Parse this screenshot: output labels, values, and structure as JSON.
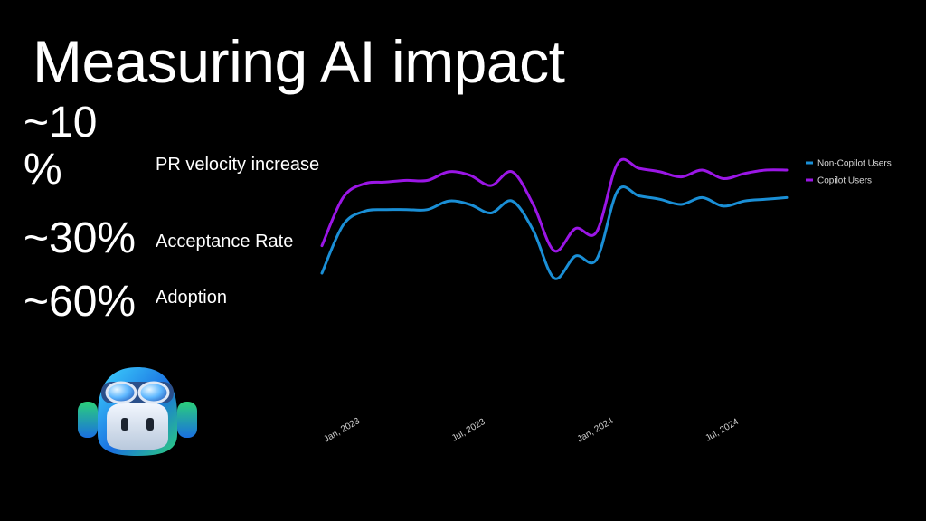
{
  "slide": {
    "title": "Measuring AI impact",
    "stats": [
      {
        "value_line1": "~10",
        "value_line2": "%",
        "label": "PR velocity increase"
      },
      {
        "value": "~30%",
        "label": "Acceptance Rate"
      },
      {
        "value": "~60%",
        "label": "Adoption"
      }
    ],
    "logo_icon": "copilot-mascot-icon"
  },
  "chart_data": {
    "type": "line",
    "title": "",
    "xlabel": "",
    "ylabel": "",
    "x_ticks": [
      "Jan, 2023",
      "Jul, 2023",
      "Jan, 2024",
      "Jul, 2024"
    ],
    "x": [
      "2022-12",
      "2023-01",
      "2023-02",
      "2023-03",
      "2023-04",
      "2023-05",
      "2023-06",
      "2023-07",
      "2023-08",
      "2023-09",
      "2023-10",
      "2023-11",
      "2023-12",
      "2024-01",
      "2024-02",
      "2024-03",
      "2024-04",
      "2024-05",
      "2024-06",
      "2024-07",
      "2024-08",
      "2024-09",
      "2024-10"
    ],
    "series": [
      {
        "name": "Non-Copilot Users",
        "color": "#1a8fd6",
        "values": [
          20,
          48,
          56,
          57,
          57,
          57,
          62,
          60,
          55,
          62,
          45,
          17,
          30,
          28,
          68,
          65,
          63,
          60,
          64,
          59,
          62,
          63,
          64
        ]
      },
      {
        "name": "Copilot Users",
        "color": "#9b16e6",
        "values": [
          36,
          64,
          72,
          73,
          74,
          74,
          79,
          77,
          71,
          79,
          60,
          33,
          46,
          44,
          84,
          81,
          79,
          76,
          80,
          75,
          78,
          80,
          80
        ]
      }
    ],
    "ylim": [
      0,
      100
    ],
    "grid": false,
    "legend": "top-right"
  }
}
